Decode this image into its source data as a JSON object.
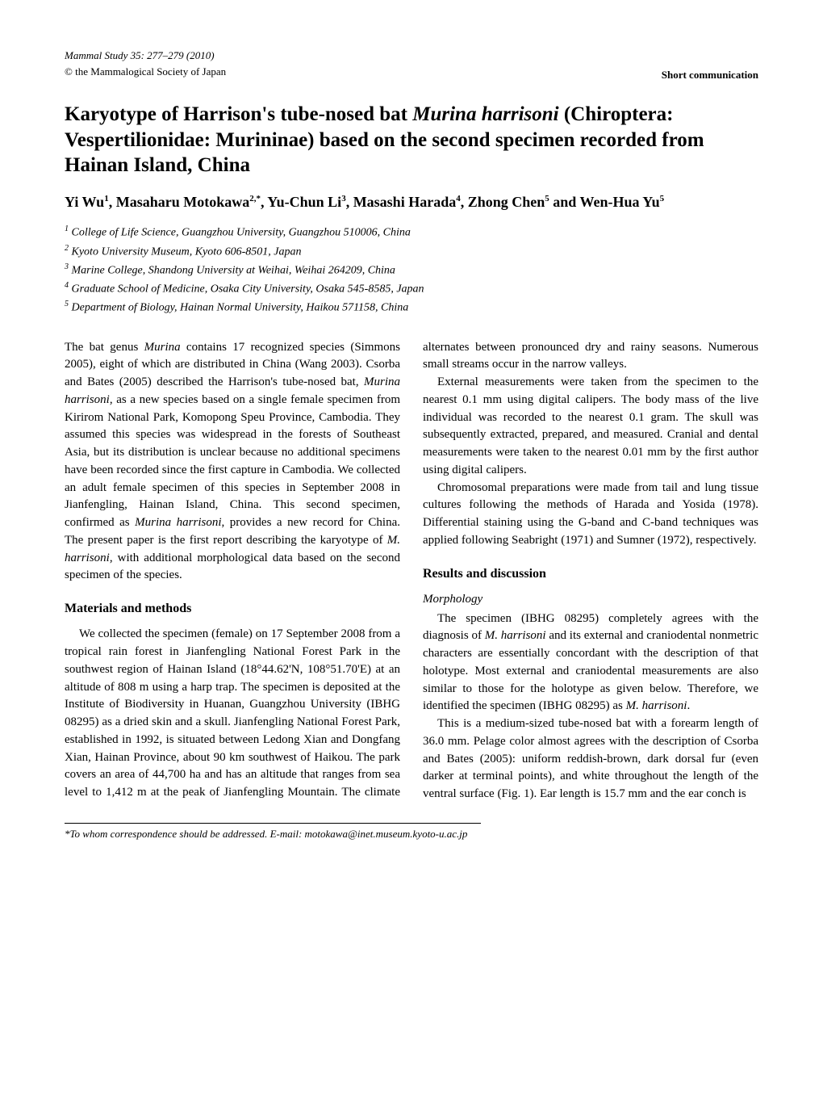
{
  "header": {
    "journal": "Mammal Study 35: 277–279 (2010)",
    "copyright": "© the Mammalogical Society of Japan",
    "type": "Short communication"
  },
  "title": {
    "pre": "Karyotype of Harrison's tube-nosed bat ",
    "species": "Murina harrisoni",
    "post": " (Chiroptera: Vespertilionidae: Murininae) based on the second specimen recorded from Hainan Island, China"
  },
  "authors": [
    {
      "name": "Yi Wu",
      "sup": "1"
    },
    {
      "name": "Masaharu Motokawa",
      "sup": "2,*"
    },
    {
      "name": "Yu-Chun Li",
      "sup": "3"
    },
    {
      "name": "Masashi Harada",
      "sup": "4"
    },
    {
      "name": "Zhong Chen",
      "sup": "5"
    },
    {
      "name": "Wen-Hua Yu",
      "sup": "5"
    }
  ],
  "affiliations": [
    {
      "num": "1",
      "text": " College of Life Science, Guangzhou University, Guangzhou 510006, China"
    },
    {
      "num": "2",
      "text": " Kyoto University Museum, Kyoto 606-8501, Japan"
    },
    {
      "num": "3",
      "text": " Marine College, Shandong University at Weihai, Weihai 264209, China"
    },
    {
      "num": "4",
      "text": " Graduate School of Medicine, Osaka City University, Osaka 545-8585, Japan"
    },
    {
      "num": "5",
      "text": " Department of Biology, Hainan Normal University, Haikou 571158, China"
    }
  ],
  "body": {
    "intro_p1a": "The bat genus ",
    "intro_p1_species1": "Murina",
    "intro_p1b": " contains 17 recognized species (Simmons 2005), eight of which are distributed in China (Wang 2003). Csorba and Bates (2005) described the Harrison's tube-nosed bat, ",
    "intro_p1_species2": "Murina harrisoni",
    "intro_p1c": ", as a new species based on a single female specimen from Kirirom National Park, Komopong Speu Province, Cambodia. They assumed this species was widespread in the forests of Southeast Asia, but its distribution is unclear because no additional specimens have been recorded since the first capture in Cambodia. We collected an adult female specimen of this species in September 2008 in Jianfengling, Hainan Island, China. This second specimen, confirmed as ",
    "intro_p1_species3": "Murina harrisoni",
    "intro_p1d": ", provides a new record for China. The present paper is the first report describing the karyotype of ",
    "intro_p1_species4": "M. harrisoni",
    "intro_p1e": ", with additional morphological data based on the second specimen of the species.",
    "materials_heading": "Materials and methods",
    "materials_p1": "We collected the specimen (female) on 17 September 2008 from a tropical rain forest in Jianfengling National Forest Park in the southwest region of Hainan Island (18°44.62'N, 108°51.70'E) at an altitude of 808 m using a harp trap. The specimen is deposited at the Institute of Biodiversity in Huanan, Guangzhou University (IBHG 08295) as a dried skin and a skull. Jianfengling National Forest Park, established in 1992, is situated between Ledong Xian and Dongfang Xian, Hainan Province, about 90 km southwest of Haikou. The park covers an area of 44,700 ha and has an altitude that ranges from sea level to 1,412 m at the peak of Jianfengling Mountain.",
    "materials_p1_cont": "The climate alternates between pronounced dry and rainy seasons. Numerous small streams occur in the narrow valleys.",
    "materials_p2": "External measurements were taken from the specimen to the nearest 0.1 mm using digital calipers. The body mass of the live individual was recorded to the nearest 0.1 gram. The skull was subsequently extracted, prepared, and measured. Cranial and dental measurements were taken to the nearest 0.01 mm by the first author using digital calipers.",
    "materials_p3": "Chromosomal preparations were made from tail and lung tissue cultures following the methods of Harada and Yosida (1978). Differential staining using the G-band and C-band techniques was applied following Seabright (1971) and Sumner (1972), respectively.",
    "results_heading": "Results and discussion",
    "morphology_heading": "Morphology",
    "results_p1a": "The specimen (IBHG 08295) completely agrees with the diagnosis of ",
    "results_p1_species1": "M. harrisoni",
    "results_p1b": " and its external and craniodental nonmetric characters are essentially concordant with the description of that holotype. Most external and craniodental measurements are also similar to those for the holotype as given below. Therefore, we identified the specimen (IBHG 08295) as ",
    "results_p1_species2": "M. harrisoni",
    "results_p1c": ".",
    "results_p2": "This is a medium-sized tube-nosed bat with a forearm length of 36.0 mm. Pelage color almost agrees with the description of Csorba and Bates (2005): uniform reddish-brown, dark dorsal fur (even darker at terminal points), and white throughout the length of the ventral surface (Fig. 1). Ear length is 15.7 mm and the ear conch is"
  },
  "footer": {
    "correspondence": "*To whom correspondence should be addressed. E-mail: motokawa@inet.museum.kyoto-u.ac.jp"
  }
}
